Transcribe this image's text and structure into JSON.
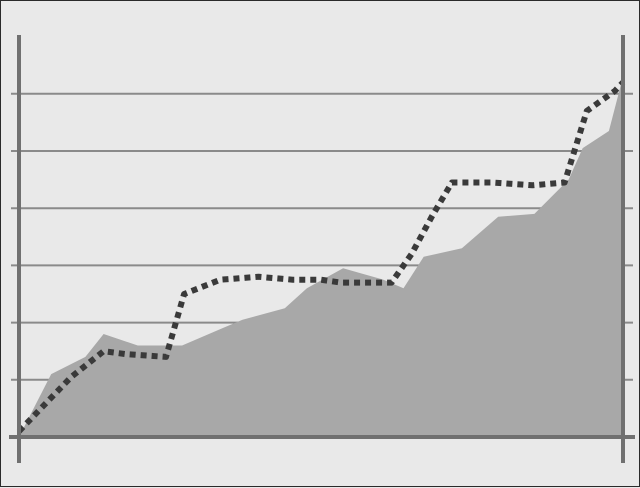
{
  "chart_data": {
    "type": "area",
    "title": "",
    "xlabel": "",
    "ylabel": "",
    "xlim": [
      0,
      30
    ],
    "ylim": [
      0,
      6
    ],
    "grid": true,
    "colors": {
      "background": "#e9e9e9",
      "area_fill": "#a8a8a8",
      "dotted_line": "#3a3a3a",
      "gridline": "#8a8a8a",
      "axis": "#707070",
      "frame": "#2a2a2a"
    },
    "series": [
      {
        "type": "area",
        "x": [
          0,
          1.6,
          3.3,
          4.2,
          5.9,
          8.1,
          10.1,
          11.1,
          13.2,
          14.3,
          16.1,
          17.1,
          18.1,
          19.1,
          20.1,
          22.0,
          23.8,
          25.6,
          27.3,
          28.0,
          29.3,
          30.0
        ],
        "values": [
          0,
          1.1,
          1.4,
          1.8,
          1.6,
          1.6,
          1.9,
          2.05,
          2.25,
          2.6,
          2.95,
          2.85,
          2.75,
          2.6,
          3.15,
          3.3,
          3.85,
          3.9,
          4.5,
          5.05,
          5.35,
          6.3
        ]
      },
      {
        "type": "line",
        "style": "dotted",
        "x": [
          0,
          1.5,
          2.6,
          4.2,
          5.3,
          7.3,
          8.2,
          10.0,
          11.9,
          13.6,
          15.0,
          16.0,
          17.0,
          18.5,
          19.5,
          20.5,
          21.5,
          23.5,
          25.5,
          27.1,
          28.2,
          29.6,
          30.0
        ],
        "values": [
          0.1,
          0.65,
          1.05,
          1.5,
          1.45,
          1.4,
          2.5,
          2.75,
          2.8,
          2.75,
          2.75,
          2.7,
          2.7,
          2.7,
          3.2,
          3.85,
          4.45,
          4.45,
          4.4,
          4.45,
          5.7,
          6.05,
          6.2
        ]
      }
    ]
  }
}
